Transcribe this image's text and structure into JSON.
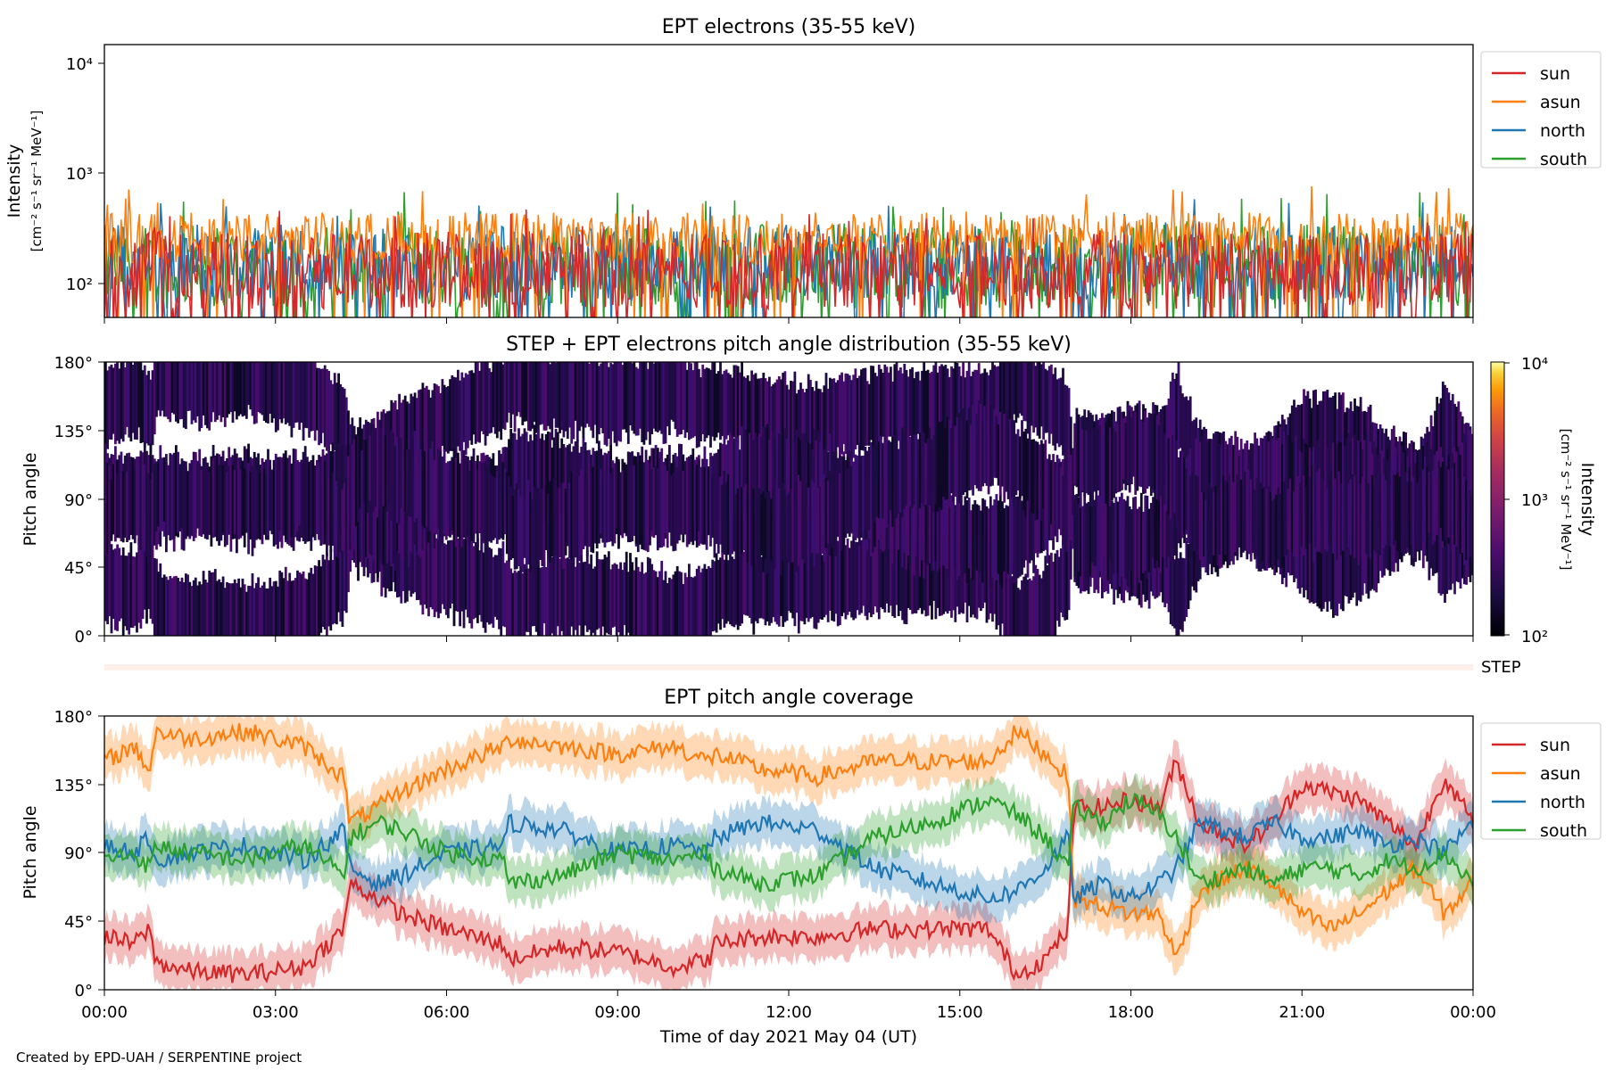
{
  "footer": "Created by EPD-UAH / SERPENTINE project",
  "xlabel": "Time of day 2021 May 04 (UT)",
  "x_ticks": [
    "00:00",
    "03:00",
    "06:00",
    "09:00",
    "12:00",
    "15:00",
    "18:00",
    "21:00",
    "00:00"
  ],
  "series_colors": {
    "sun": "#d62728",
    "asun": "#ff7f0e",
    "north": "#1f77b4",
    "south": "#2ca02c"
  },
  "chart_data": [
    {
      "type": "line",
      "title": "EPT electrons (35-55 keV)",
      "ylabel_line1": "Intensity",
      "ylabel_line2": "[cm⁻² s⁻¹ sr⁻¹ MeV⁻¹]",
      "yscale": "log",
      "ylim": [
        50,
        15000
      ],
      "y_ticks": [
        "10⁴",
        "10³",
        "10²"
      ],
      "x_range_hours": [
        0,
        24
      ],
      "legend": [
        "sun",
        "asun",
        "north",
        "south"
      ],
      "legend_position": "outside-upper-right",
      "series": [
        {
          "name": "sun",
          "typical_range": [
            60,
            300
          ],
          "peak": 500
        },
        {
          "name": "asun",
          "typical_range": [
            150,
            450
          ],
          "peak": 780
        },
        {
          "name": "north",
          "typical_range": [
            70,
            350
          ],
          "peak": 680
        },
        {
          "name": "south",
          "typical_range": [
            60,
            350
          ],
          "peak": 700
        }
      ]
    },
    {
      "type": "heatmap",
      "title": "STEP + EPT electrons pitch angle distribution (35-55 keV)",
      "ylabel": "Pitch angle",
      "ylim": [
        0,
        180
      ],
      "y_ticks": [
        "180°",
        "135°",
        "90°",
        "45°",
        "0°"
      ],
      "colorbar": {
        "label_line1": "Intensity",
        "label_line2": "[cm⁻² s⁻¹ sr⁻¹ MeV⁻¹]",
        "scale": "log",
        "range": [
          100,
          10000
        ],
        "ticks": [
          "10⁴",
          "10³",
          "10²"
        ],
        "colormap": "inferno"
      },
      "step_label": "STEP"
    },
    {
      "type": "line",
      "title": "EPT pitch angle coverage",
      "ylabel": "Pitch angle",
      "ylim": [
        0,
        180
      ],
      "y_ticks": [
        "180°",
        "135°",
        "90°",
        "45°",
        "0°"
      ],
      "x_range_hours": [
        0,
        24
      ],
      "legend": [
        "sun",
        "asun",
        "north",
        "south"
      ],
      "legend_position": "outside-upper-right",
      "series": [
        {
          "name": "sun",
          "x": [
            0,
            0.5,
            0.8,
            0.9,
            1.5,
            2.5,
            3.5,
            4.2,
            4.3,
            4.8,
            5.2,
            6,
            7,
            7.1,
            8,
            9,
            10,
            10.6,
            10.7,
            11.5,
            12.5,
            13.5,
            14.5,
            15.5,
            16,
            16.5,
            16.9,
            17,
            17.5,
            18,
            18.5,
            18.8,
            19.2,
            20,
            20.5,
            21,
            21.5,
            22,
            22.5,
            23,
            23.5,
            24
          ],
          "values": [
            35,
            30,
            40,
            18,
            12,
            10,
            15,
            40,
            70,
            60,
            50,
            40,
            30,
            20,
            28,
            25,
            15,
            20,
            30,
            35,
            35,
            40,
            40,
            40,
            10,
            20,
            40,
            120,
            120,
            125,
            120,
            150,
            110,
            95,
            110,
            135,
            130,
            125,
            110,
            95,
            140,
            110
          ]
        },
        {
          "name": "asun",
          "x": [
            0,
            0.5,
            0.8,
            0.9,
            1.5,
            2.5,
            3.5,
            4.2,
            4.3,
            4.8,
            5.2,
            6,
            7,
            7.1,
            8,
            9,
            10,
            10.6,
            10.7,
            11.5,
            12.5,
            13.5,
            14.5,
            15.5,
            16,
            16.5,
            16.9,
            17,
            17.5,
            18,
            18.5,
            18.8,
            19.2,
            20,
            20.5,
            21,
            21.5,
            22,
            22.5,
            23,
            23.5,
            24
          ],
          "values": [
            150,
            160,
            145,
            170,
            165,
            170,
            160,
            140,
            110,
            120,
            130,
            145,
            160,
            165,
            160,
            155,
            160,
            150,
            155,
            145,
            140,
            150,
            150,
            150,
            170,
            155,
            140,
            60,
            55,
            50,
            50,
            20,
            65,
            80,
            70,
            50,
            40,
            50,
            65,
            80,
            50,
            70
          ]
        },
        {
          "name": "north",
          "x": [
            0,
            0.5,
            0.8,
            0.9,
            1.5,
            2.5,
            3.5,
            4.2,
            4.3,
            4.8,
            5.2,
            6,
            7,
            7.1,
            8,
            9,
            10,
            10.6,
            10.7,
            11.5,
            12.5,
            13.5,
            14.5,
            15.5,
            16,
            16.5,
            16.9,
            17,
            17.5,
            18,
            18.5,
            18.8,
            19.2,
            20,
            20.5,
            21,
            21.5,
            22,
            22.5,
            23,
            23.5,
            24
          ],
          "values": [
            95,
            90,
            100,
            85,
            90,
            95,
            85,
            105,
            80,
            70,
            75,
            90,
            95,
            110,
            105,
            90,
            95,
            90,
            100,
            110,
            105,
            80,
            70,
            60,
            65,
            80,
            100,
            60,
            70,
            60,
            70,
            80,
            110,
            100,
            110,
            100,
            100,
            105,
            95,
            100,
            90,
            110
          ]
        },
        {
          "name": "south",
          "x": [
            0,
            0.5,
            0.8,
            0.9,
            1.5,
            2.5,
            3.5,
            4.2,
            4.3,
            4.8,
            5.2,
            6,
            7,
            7.1,
            8,
            9,
            10,
            10.6,
            10.7,
            11.5,
            12.5,
            13.5,
            14.5,
            15.5,
            16,
            16.5,
            16.9,
            17,
            17.5,
            18,
            18.5,
            18.8,
            19.2,
            20,
            20.5,
            21,
            21.5,
            22,
            22.5,
            23,
            23.5,
            24
          ],
          "values": [
            85,
            90,
            80,
            95,
            90,
            85,
            95,
            75,
            100,
            110,
            105,
            90,
            85,
            70,
            75,
            90,
            85,
            90,
            80,
            70,
            75,
            100,
            110,
            125,
            115,
            100,
            80,
            120,
            110,
            125,
            115,
            100,
            70,
            80,
            70,
            80,
            80,
            75,
            85,
            80,
            90,
            70
          ]
        }
      ]
    }
  ]
}
